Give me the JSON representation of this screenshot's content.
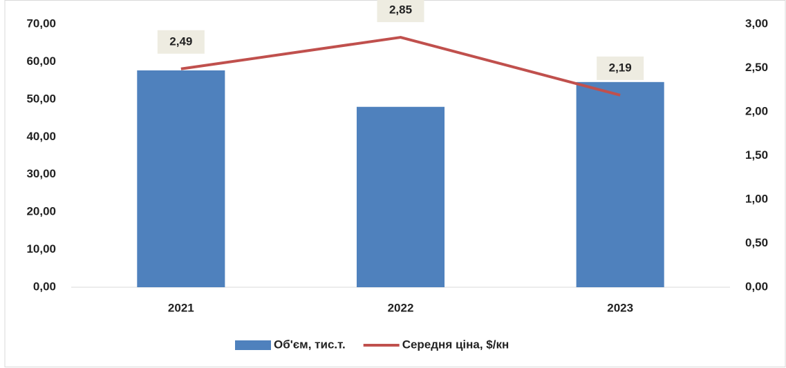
{
  "chart_data": {
    "type": "bar",
    "categories": [
      "2021",
      "2022",
      "2023"
    ],
    "series": [
      {
        "name": "Об'єм, тис.т.",
        "color": "#4f81bd",
        "type": "bar",
        "values": [
          57.7,
          48,
          54.6
        ]
      },
      {
        "name": "Середня ціна, $/кн",
        "color": "#c0504d",
        "type": "line",
        "axis": "y2",
        "values": [
          2.49,
          2.85,
          2.19
        ],
        "value_labels": [
          "2,49",
          "2,85",
          "2,19"
        ]
      }
    ],
    "ylim": [
      0,
      70
    ],
    "yticks": [
      {
        "value": 0,
        "label": "0,00"
      },
      {
        "value": 10,
        "label": "10,00"
      },
      {
        "value": 20,
        "label": "20,00"
      },
      {
        "value": 30,
        "label": "30,00"
      },
      {
        "value": 40,
        "label": "40,00"
      },
      {
        "value": 50,
        "label": "50,00"
      },
      {
        "value": 60,
        "label": "60,00"
      },
      {
        "value": 70,
        "label": "70,00"
      }
    ],
    "y2lim": [
      0,
      3
    ],
    "y2ticks": [
      {
        "value": 0,
        "label": "0,00"
      },
      {
        "value": 0.5,
        "label": "0,50"
      },
      {
        "value": 1,
        "label": "1,00"
      },
      {
        "value": 1.5,
        "label": "1,50"
      },
      {
        "value": 2,
        "label": "2,00"
      },
      {
        "value": 2.5,
        "label": "2,50"
      },
      {
        "value": 3,
        "label": "3,00"
      }
    ],
    "grid": false,
    "legend": "bottom"
  }
}
